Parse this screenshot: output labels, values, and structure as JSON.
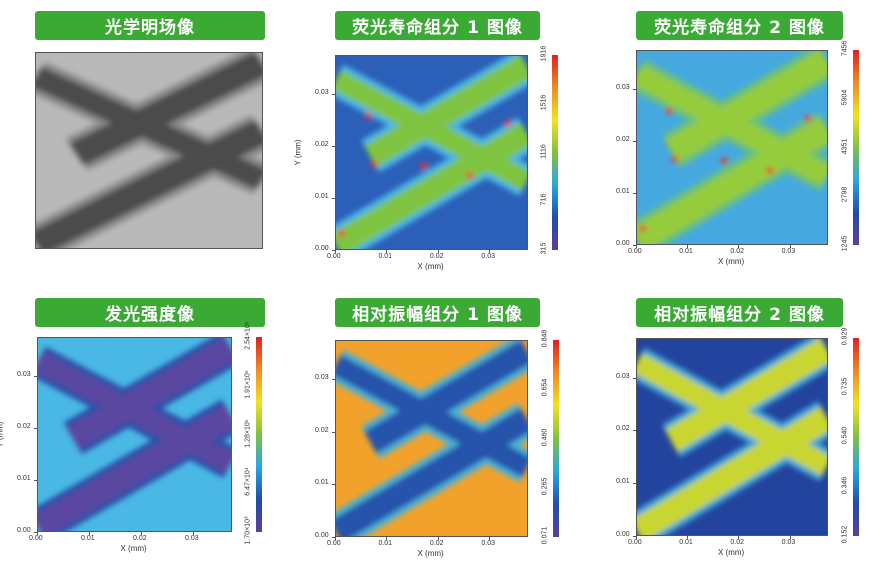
{
  "colormap": [
    "#5b3f9a",
    "#1f4fa8",
    "#2aa7e0",
    "#7dc242",
    "#f4e21c",
    "#f08a24",
    "#e02020"
  ],
  "panels": [
    {
      "title": "光学明场像",
      "type": "brightfield",
      "colors": {
        "bg": "#b9b9b9",
        "halo": "#8a8a8a",
        "band": "#4b4b4b"
      }
    },
    {
      "title": "荧光寿命组分 1 图像",
      "ylabel": "Y (mm)",
      "xlabel": "X (mm)",
      "x_ticks": [
        "0.00",
        "0.01",
        "0.02",
        "0.03"
      ],
      "y_ticks": [
        "0.00",
        "0.01",
        "0.02",
        "0.03"
      ],
      "colorbar_ticks": [
        "315",
        "716",
        "1116",
        "1516",
        "1916"
      ],
      "colors": {
        "bg": "#2c5fb8",
        "halo": "#46b6e6",
        "band": "#7fc441"
      }
    },
    {
      "title": "荧光寿命组分 2 图像",
      "xlabel": "X (mm)",
      "x_ticks": [
        "0.00",
        "0.01",
        "0.02",
        "0.03"
      ],
      "y_ticks": [
        "0.00",
        "0.01",
        "0.02",
        "0.03"
      ],
      "colorbar_ticks": [
        "1245",
        "2798",
        "4351",
        "5904",
        "7456"
      ],
      "colors": {
        "bg": "#45a9e0",
        "halo": "#6cc07a",
        "band": "#95cc3a"
      }
    },
    {
      "title": "发光强度像",
      "ylabel": "Y (mm)",
      "xlabel": "X (mm)",
      "x_ticks": [
        "0.00",
        "0.01",
        "0.02",
        "0.03"
      ],
      "y_ticks": [
        "0.00",
        "0.01",
        "0.02",
        "0.03"
      ],
      "colorbar_ticks": [
        "1.70×10³",
        "6.47×10⁴",
        "1.28×10⁵",
        "1.91×10⁵",
        "2.54×10⁵"
      ],
      "colors": {
        "bg": "#4ab8e4",
        "halo": "#2a4faa",
        "band": "#5a46a0"
      }
    },
    {
      "title": "相对振幅组分 1 图像",
      "xlabel": "X (mm)",
      "x_ticks": [
        "0.00",
        "0.01",
        "0.02",
        "0.03"
      ],
      "y_ticks": [
        "0.00",
        "0.01",
        "0.02",
        "0.03"
      ],
      "colorbar_ticks": [
        "0.071",
        "0.265",
        "0.460",
        "0.654",
        "0.848"
      ],
      "colors": {
        "bg": "#f2a22a",
        "halo": "#4cb0d8",
        "band": "#2553ab"
      }
    },
    {
      "title": "相对振幅组分 2 图像",
      "xlabel": "X (mm)",
      "x_ticks": [
        "0.00",
        "0.01",
        "0.02",
        "0.03"
      ],
      "y_ticks": [
        "0.00",
        "0.01",
        "0.02",
        "0.03"
      ],
      "colorbar_ticks": [
        "0.152",
        "0.346",
        "0.540",
        "0.735",
        "0.929"
      ],
      "colors": {
        "bg": "#23449e",
        "halo": "#3fa8d8",
        "band": "#c9d633"
      }
    }
  ]
}
